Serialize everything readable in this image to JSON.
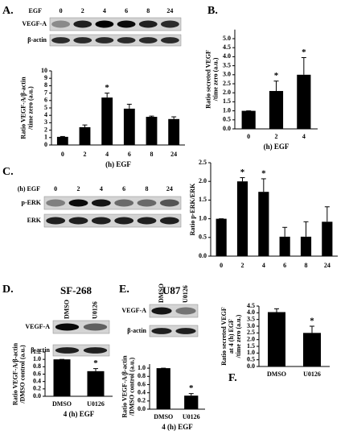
{
  "chart_data": [
    {
      "type": "bar",
      "panel": "A.",
      "categories": [
        "0",
        "2",
        "4",
        "6",
        "8",
        "24"
      ],
      "values": [
        1.1,
        2.4,
        6.4,
        4.9,
        3.8,
        3.5
      ],
      "errors": [
        0.05,
        0.3,
        0.6,
        0.6,
        0.1,
        0.3
      ],
      "ylim": [
        0,
        10
      ],
      "yticks": [
        0,
        1,
        2,
        3,
        4,
        5,
        6,
        7,
        8,
        9,
        10
      ],
      "ylabel": [
        "Ratio VEGF-A/β-actin",
        "/time zero (a.u.)"
      ],
      "xlabel": "(h) EGF",
      "color": "#000000",
      "annotations": [
        {
          "index": 2,
          "text": "*"
        }
      ],
      "blot": {
        "header": "EGF",
        "lanes": [
          "0",
          "2",
          "4",
          "6",
          "8",
          "24"
        ],
        "rows": [
          "VEGF-A",
          "β-actin"
        ]
      }
    },
    {
      "type": "bar",
      "panel": "B.",
      "categories": [
        "0",
        "2",
        "4"
      ],
      "values": [
        1.0,
        2.1,
        3.0
      ],
      "errors": [
        0,
        0.55,
        0.95
      ],
      "ylim": [
        0,
        5.5
      ],
      "yticks": [
        {
          "value": 0,
          "label": "0.0"
        },
        {
          "value": 0.5,
          "label": "0.5"
        },
        {
          "value": 1,
          "label": "1.0"
        },
        {
          "value": 1.5,
          "label": "1.5"
        },
        {
          "value": 2,
          "label": "2.0"
        },
        {
          "value": 2.5,
          "label": "2.5"
        },
        {
          "value": 3,
          "label": "3.0"
        },
        {
          "value": 3.5,
          "label": "3.5"
        },
        {
          "value": 4,
          "label": "4.0"
        },
        {
          "value": 4.5,
          "label": "4.5"
        },
        {
          "value": 5,
          "label": "5.0"
        }
      ],
      "ylabel": [
        "Ratio secreted VEGF",
        "/time zero (a.u.)"
      ],
      "xlabel": "(h) EGF",
      "color": "#000000",
      "annotations": [
        {
          "index": 1,
          "text": "*"
        },
        {
          "index": 2,
          "text": "*"
        }
      ]
    },
    {
      "type": "bar",
      "panel": "C.",
      "categories": [
        "0",
        "2",
        "4",
        "6",
        "8",
        "24"
      ],
      "values": [
        1.0,
        2.0,
        1.72,
        0.52,
        0.52,
        0.92
      ],
      "errors": [
        0,
        0.1,
        0.35,
        0.25,
        0.4,
        0.4
      ],
      "ylim": [
        0,
        2.5
      ],
      "yticks": [
        {
          "value": 0,
          "label": "0.0"
        },
        {
          "value": 0.5,
          "label": "0.5"
        },
        {
          "value": 1,
          "label": "1.0"
        },
        {
          "value": 1.5,
          "label": "1.5"
        },
        {
          "value": 2,
          "label": "2.0"
        },
        {
          "value": 2.5,
          "label": "2.5"
        }
      ],
      "ylabel": [
        "Ratio p-ERK/ERK"
      ],
      "color": "#000000",
      "annotations": [
        {
          "index": 1,
          "text": "*"
        },
        {
          "index": 2,
          "text": "*"
        }
      ],
      "blot": {
        "header": "(h) EGF",
        "lanes": [
          "0",
          "2",
          "4",
          "6",
          "8",
          "24"
        ],
        "rows": [
          "p-ERK",
          "ERK"
        ]
      }
    },
    {
      "type": "bar",
      "panel": "D.",
      "title": "SF-268",
      "categories": [
        "DMSO",
        "U0126"
      ],
      "values": [
        1.0,
        0.68
      ],
      "errors": [
        0,
        0.07
      ],
      "ylim": [
        0,
        1.2
      ],
      "yticks": [
        {
          "value": 0,
          "label": "0.0"
        },
        {
          "value": 0.2,
          "label": "0.2"
        },
        {
          "value": 0.4,
          "label": "0.4"
        },
        {
          "value": 0.6,
          "label": "0.6"
        },
        {
          "value": 0.8,
          "label": "0.8"
        },
        {
          "value": 1,
          "label": "1.0"
        },
        {
          "value": 1.2,
          "label": "1.2"
        }
      ],
      "ylabel": [
        "Ratio VEGF-A/β-actin",
        "/DMSO control (a.u.)"
      ],
      "xlabel": "4 (h) EGF",
      "color": "#000000",
      "annotations": [
        {
          "index": 1,
          "text": "*"
        }
      ],
      "blot": {
        "lanes": [
          "DMSO",
          "U0126"
        ],
        "rows": [
          "VEGF-A",
          "β-actin"
        ]
      }
    },
    {
      "type": "bar",
      "panel": "E.",
      "title": "U87",
      "categories": [
        "DMSO",
        "U0126"
      ],
      "values": [
        1.0,
        0.33
      ],
      "errors": [
        0,
        0.05
      ],
      "ylim": [
        0,
        1.1
      ],
      "yticks": [
        {
          "value": 0,
          "label": "0.0"
        },
        {
          "value": 0.2,
          "label": "0.2"
        },
        {
          "value": 0.4,
          "label": "0.4"
        },
        {
          "value": 0.6,
          "label": "0.6"
        },
        {
          "value": 0.8,
          "label": "0.8"
        },
        {
          "value": 1,
          "label": "1.0"
        }
      ],
      "ylabel": [
        "Ratio VEGF-A/β-actin",
        "/DMSO control (a.u.)"
      ],
      "xlabel": "4 (h) EGF",
      "color": "#000000",
      "annotations": [
        {
          "index": 1,
          "text": "*"
        }
      ],
      "blot": {
        "lanes": [
          "DMSO",
          "U0126"
        ],
        "rows": [
          "VEGF-A",
          "β-actin"
        ]
      }
    },
    {
      "type": "bar",
      "panel": "F.",
      "categories": [
        "DMSO",
        "U0126"
      ],
      "values": [
        4.05,
        2.5
      ],
      "errors": [
        0.25,
        0.5
      ],
      "ylim": [
        0,
        4.5
      ],
      "yticks": [
        {
          "value": 0,
          "label": "0.0"
        },
        {
          "value": 0.5,
          "label": "0.5"
        },
        {
          "value": 1,
          "label": "1.0"
        },
        {
          "value": 1.5,
          "label": "1.5"
        },
        {
          "value": 2,
          "label": "2.0"
        },
        {
          "value": 2.5,
          "label": "2.5"
        },
        {
          "value": 3,
          "label": "3.0"
        },
        {
          "value": 3.5,
          "label": "3.5"
        },
        {
          "value": 4,
          "label": "4.0"
        },
        {
          "value": 4.5,
          "label": "4.5"
        }
      ],
      "ylabel": [
        "Ratio secreted VEGF",
        "at 4 (h) EGF",
        "/time zero (a.u.)"
      ],
      "color": "#000000",
      "annotations": [
        {
          "index": 1,
          "text": "*"
        }
      ]
    }
  ]
}
